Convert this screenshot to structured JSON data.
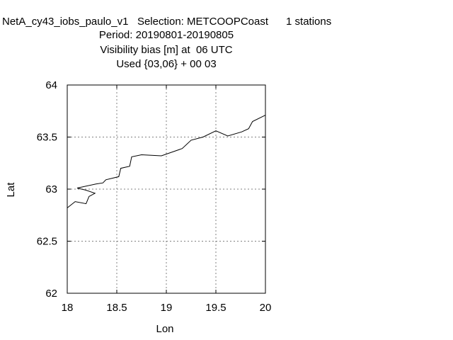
{
  "chart_data": {
    "type": "line",
    "title_lines": [
      "NetA_cy43_iobs_paulo_v1   Selection: METCOOPCoast      1 stations",
      "Period: 20190801-20190805",
      "Visibility bias [m] at  06 UTC",
      "Used {03,06} + 00 03"
    ],
    "xlabel": "Lon",
    "ylabel": "Lat",
    "xlim": [
      18,
      20
    ],
    "ylim": [
      62,
      64
    ],
    "xticks": [
      "18",
      "18.5",
      "19",
      "19.5",
      "20"
    ],
    "yticks": [
      "62",
      "62.5",
      "63",
      "63.5",
      "64"
    ],
    "grid": true,
    "coastline": {
      "x": [
        18.0,
        18.08,
        18.19,
        18.22,
        18.28,
        18.19,
        18.1,
        18.29,
        18.36,
        18.39,
        18.52,
        18.54,
        18.63,
        18.65,
        18.75,
        18.95,
        19.16,
        19.25,
        19.37,
        19.5,
        19.62,
        19.76,
        19.83,
        19.87,
        20.0
      ],
      "y": [
        62.82,
        62.88,
        62.86,
        62.93,
        62.96,
        62.99,
        63.01,
        63.05,
        63.06,
        63.09,
        63.12,
        63.2,
        63.22,
        63.31,
        63.33,
        63.32,
        63.39,
        63.47,
        63.5,
        63.56,
        63.51,
        63.55,
        63.58,
        63.65,
        63.71
      ]
    }
  }
}
